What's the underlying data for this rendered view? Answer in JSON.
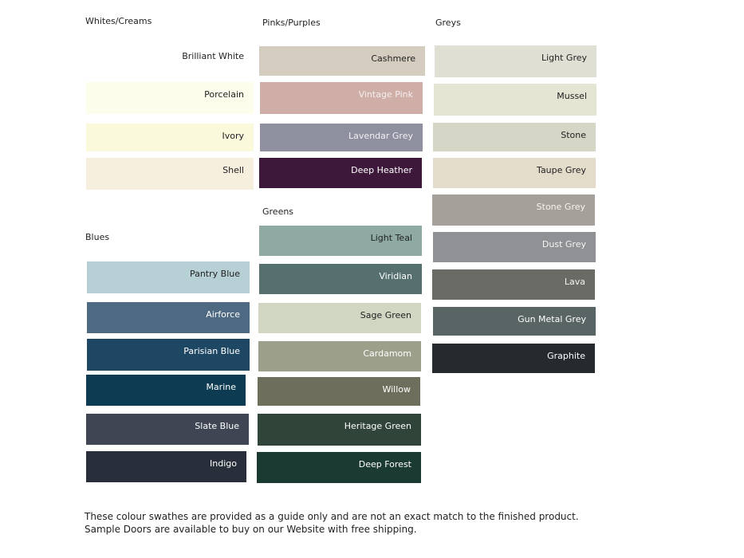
{
  "groups": [
    {
      "title": "Whites/Creams",
      "swatches": [
        {
          "name": "Brilliant White",
          "color": "#ffffff",
          "text": "#222222"
        },
        {
          "name": "Porcelain",
          "color": "#fdfdec",
          "text": "#222222"
        },
        {
          "name": "Ivory",
          "color": "#fbf9dc",
          "text": "#222222"
        },
        {
          "name": "Shell",
          "color": "#f6efde",
          "text": "#222222"
        }
      ]
    },
    {
      "title": "Pinks/Purples",
      "swatches": [
        {
          "name": "Cashmere",
          "color": "#d4cdbf",
          "text": "#222222"
        },
        {
          "name": "Vintage Pink",
          "color": "#cfaea7",
          "text": "#f4eeee"
        },
        {
          "name": "Lavendar Grey",
          "color": "#8f909f",
          "text": "#f0f0f4"
        },
        {
          "name": "Deep Heather",
          "color": "#3d183b",
          "text": "#ffffff"
        }
      ]
    },
    {
      "title": "Greys",
      "swatches": [
        {
          "name": "Light Grey",
          "color": "#dfdfd3",
          "text": "#222222"
        },
        {
          "name": "Mussel",
          "color": "#e4e5d3",
          "text": "#222222"
        },
        {
          "name": "Stone",
          "color": "#d5d6c5",
          "text": "#222222"
        },
        {
          "name": "Taupe Grey",
          "color": "#e4dccb",
          "text": "#222222"
        },
        {
          "name": "Stone Grey",
          "color": "#a5a19a",
          "text": "#f4f4f0"
        },
        {
          "name": "Dust Grey",
          "color": "#909195",
          "text": "#f4f4f4"
        },
        {
          "name": "Lava",
          "color": "#6b6b66",
          "text": "#f4f4f4"
        },
        {
          "name": "Gun Metal Grey",
          "color": "#586564",
          "text": "#ffffff"
        },
        {
          "name": "Graphite",
          "color": "#252a2e",
          "text": "#ffffff"
        }
      ]
    },
    {
      "title": "Greens",
      "swatches": [
        {
          "name": "Light Teal",
          "color": "#8eaaa3",
          "text": "#222222"
        },
        {
          "name": "Viridian",
          "color": "#55706f",
          "text": "#ffffff"
        },
        {
          "name": "Sage Green",
          "color": "#d0d6c2",
          "text": "#222222"
        },
        {
          "name": "Cardamom",
          "color": "#9ca08a",
          "text": "#ffffff"
        },
        {
          "name": "Willow",
          "color": "#6e6e5d",
          "text": "#ffffff"
        },
        {
          "name": "Heritage Green",
          "color": "#31443a",
          "text": "#ffffff"
        },
        {
          "name": "Deep Forest",
          "color": "#1b3a31",
          "text": "#ffffff"
        }
      ]
    },
    {
      "title": "Blues",
      "swatches": [
        {
          "name": "Pantry Blue",
          "color": "#b6d0d5",
          "text": "#222222"
        },
        {
          "name": "Airforce",
          "color": "#4e6a82",
          "text": "#ffffff"
        },
        {
          "name": "Parisian Blue",
          "color": "#1e4763",
          "text": "#ffffff"
        },
        {
          "name": "Marine",
          "color": "#0c3b52",
          "text": "#ffffff"
        },
        {
          "name": "Slate Blue",
          "color": "#3f4552",
          "text": "#ffffff"
        },
        {
          "name": "Indigo",
          "color": "#282f3a",
          "text": "#ffffff"
        }
      ]
    }
  ],
  "note": "These colour swathes are provided as a guide only and are not an exact match to the finished product.  Sample Doors are available to buy on our Website with free shipping."
}
